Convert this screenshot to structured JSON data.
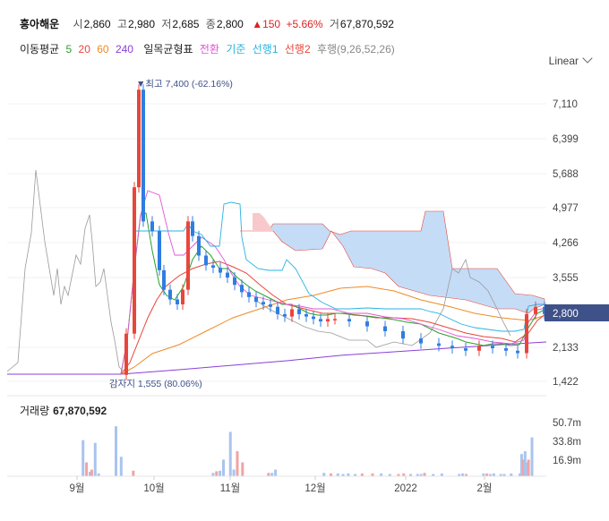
{
  "header": {
    "name": "흥아해운",
    "open_label": "시",
    "open": "2,860",
    "high_label": "고",
    "high": "2,980",
    "low_label": "저",
    "low": "2,685",
    "close_label": "종",
    "close": "2,800",
    "change": "▲150",
    "change_pct": "+5.66%",
    "volume_label": "거",
    "volume": "67,870,592"
  },
  "legend": {
    "ma_label": "이동평균",
    "ma": [
      {
        "label": "5",
        "color": "#2ca02c"
      },
      {
        "label": "20",
        "color": "#e8463b"
      },
      {
        "label": "60",
        "color": "#f08a24"
      },
      {
        "label": "240",
        "color": "#8b3fd8"
      }
    ],
    "ichimoku_label": "일목균형표",
    "ichimoku": [
      {
        "label": "전환",
        "color": "#e056d8"
      },
      {
        "label": "기준",
        "color": "#27b3e0"
      },
      {
        "label": "선행1",
        "color": "#27b3e0"
      },
      {
        "label": "선행2",
        "color": "#e8463b"
      },
      {
        "label": "후행(9,26,52,26)",
        "color": "#888888"
      }
    ]
  },
  "scale_button": "Linear",
  "annotations": {
    "high": "▼최고 7,400 (-62.16%)",
    "low": "감자지 1,555 (80.06%)"
  },
  "last_price_tag": "2,800",
  "volume_panel": {
    "title": "거래량",
    "value": "67,870,592"
  },
  "colors": {
    "up": "#e8463b",
    "down": "#2f7de1",
    "cloud": "#c5dcf7",
    "cloud_neg": "#f7c9cb",
    "price_tag": "#3f5189"
  },
  "chart_data": {
    "type": "candlestick",
    "price_axis": {
      "ticks": [
        "7,110",
        "6,399",
        "5,688",
        "4,977",
        "4,266",
        "3,555",
        "2,800",
        "2,133",
        "1,422"
      ],
      "range": [
        1422,
        7400
      ]
    },
    "volume_axis": {
      "ticks": [
        "50.7m",
        "33.8m",
        "16.9m"
      ]
    },
    "x_ticks": [
      "9월",
      "10월",
      "11월",
      "12월",
      "2022",
      "2월"
    ],
    "first_traded_close": 1555,
    "all_time_high": 7400,
    "last": {
      "open": 2860,
      "high": 2980,
      "low": 2685,
      "close": 2800,
      "volume": 67870592
    },
    "candles_close": [
      1555,
      2400,
      5400,
      7400,
      4700,
      4500,
      3700,
      3300,
      3100,
      3000,
      3300,
      4700,
      4400,
      4000,
      3800,
      3750,
      3650,
      3550,
      3400,
      3250,
      3150,
      3050,
      3000,
      2950,
      2800,
      2750,
      2900,
      2800,
      2750,
      2700,
      2650,
      2700,
      2700,
      2650,
      2550,
      2450,
      2300,
      2200,
      2150,
      2100,
      2050,
      2150,
      2100,
      2050,
      2000,
      2800,
      2950,
      2800
    ],
    "volume_bars": [
      [
        43,
        0.65
      ],
      [
        45,
        0.25
      ],
      [
        47,
        0.08
      ],
      [
        48,
        0.12
      ],
      [
        50,
        0.6
      ],
      [
        52,
        0.05
      ],
      [
        62,
        0.9
      ],
      [
        65,
        0.35
      ],
      [
        72,
        0.1
      ],
      [
        118,
        0.06
      ],
      [
        120,
        0.09
      ],
      [
        122,
        0.1
      ],
      [
        124,
        0.3
      ],
      [
        128,
        0.8
      ],
      [
        130,
        0.12
      ],
      [
        132,
        0.45
      ],
      [
        135,
        0.25
      ],
      [
        150,
        0.06
      ],
      [
        152,
        0.06
      ],
      [
        154,
        0.12
      ],
      [
        182,
        0.06
      ],
      [
        186,
        0.05
      ],
      [
        190,
        0.05
      ],
      [
        193,
        0.04
      ],
      [
        196,
        0.05
      ],
      [
        200,
        0.04
      ],
      [
        204,
        0.05
      ],
      [
        210,
        0.05
      ],
      [
        215,
        0.05
      ],
      [
        220,
        0.04
      ],
      [
        225,
        0.04
      ],
      [
        228,
        0.05
      ],
      [
        232,
        0.04
      ],
      [
        236,
        0.04
      ],
      [
        238,
        0.04
      ],
      [
        240,
        0.06
      ],
      [
        245,
        0.04
      ],
      [
        250,
        0.05
      ],
      [
        260,
        0.04
      ],
      [
        262,
        0.05
      ],
      [
        264,
        0.04
      ],
      [
        274,
        0.05
      ],
      [
        276,
        0.05
      ],
      [
        278,
        0.04
      ],
      [
        280,
        0.05
      ],
      [
        284,
        0.04
      ],
      [
        286,
        0.04
      ],
      [
        290,
        0.05
      ],
      [
        295,
        0.05
      ],
      [
        296,
        0.4
      ],
      [
        297,
        0.3
      ],
      [
        298,
        0.45
      ],
      [
        299,
        0.25
      ],
      [
        300,
        0.3
      ],
      [
        302,
        0.7
      ]
    ]
  }
}
